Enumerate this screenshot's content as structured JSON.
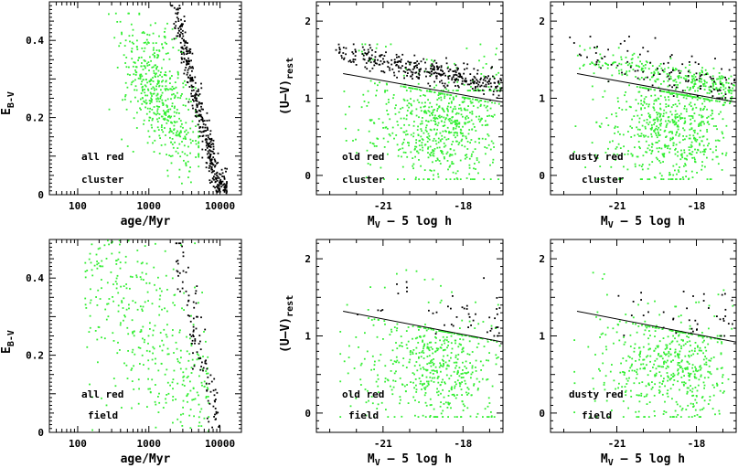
{
  "chart_data": [
    {
      "id": "age-cluster",
      "type": "scatter",
      "xscale": "log",
      "xlim": [
        40,
        20000
      ],
      "ylim": [
        0,
        0.5
      ],
      "xticks": [
        100,
        1000,
        10000
      ],
      "xticklabels": [
        "100",
        "1000",
        "10000"
      ],
      "yticks": [
        0,
        0.2,
        0.4
      ],
      "yticklabels": [
        "0",
        "0.2",
        "0.4"
      ],
      "xlabel": "age/Myr",
      "ylabel_main": "E",
      "ylabel_sub": "B-V",
      "annotation_lines": [
        "all red",
        "cluster"
      ],
      "colors": {
        "field_points": "#33ee33",
        "selected_points": "#000000"
      },
      "series": [
        {
          "role": "green",
          "n": 520,
          "x_log_range": [
            2.05,
            3.7
          ],
          "x_log_center": 3.15,
          "y_range": [
            0.02,
            0.46
          ],
          "trend": "broad"
        },
        {
          "role": "black",
          "n": 480,
          "x_log_range": [
            3.3,
            4.1
          ],
          "trend": "E(B-V) decreases steeply with age, from ~0.45 at 2500 Myr to ~0 at 10000 Myr"
        }
      ]
    },
    {
      "id": "cmd-old-cluster",
      "type": "scatter",
      "xlim": [
        -23.5,
        -16.5
      ],
      "ylim": [
        -0.25,
        2.25
      ],
      "xticks": [
        -21,
        -18
      ],
      "xticklabels": [
        "-21",
        "-18"
      ],
      "yticks": [
        0,
        1,
        2
      ],
      "yticklabels": [
        "0",
        "1",
        "2"
      ],
      "xlabel_main": "M",
      "xlabel_sub": "V",
      "xlabel_rest": " – 5 log h",
      "ylabel_main": "(U–V)",
      "ylabel_sub": "rest",
      "annotation_lines": [
        "old red",
        "cluster"
      ],
      "fit_line": {
        "x": [
          -22.5,
          -16.5
        ],
        "y": [
          1.32,
          0.95
        ]
      },
      "series": [
        {
          "role": "green",
          "n": 620,
          "y_range": [
            -0.05,
            1.3
          ],
          "trend": "blue cloud below the line"
        },
        {
          "role": "green",
          "n": 90,
          "y_range": [
            1.1,
            1.7
          ],
          "trend": "green points on the red sequence"
        },
        {
          "role": "black",
          "n": 360,
          "x_range": [
            -23.0,
            -16.5
          ],
          "y_range": [
            0.95,
            1.7
          ],
          "trend": "tight red sequence, U-V ~ 1.6 at -22.5 falling to ~1.1 at -16.5"
        }
      ]
    },
    {
      "id": "cmd-dusty-cluster",
      "type": "scatter",
      "xlim": [
        -23.5,
        -16.5
      ],
      "ylim": [
        -0.25,
        2.25
      ],
      "xticks": [
        -21,
        -18
      ],
      "xticklabels": [
        "-21",
        "-18"
      ],
      "yticks": [
        0,
        1,
        2
      ],
      "yticklabels": [
        "0",
        "1",
        "2"
      ],
      "xlabel_main": "M",
      "xlabel_sub": "V",
      "xlabel_rest": " – 5 log h",
      "annotation_lines": [
        "dusty red",
        "cluster"
      ],
      "fit_line": {
        "x": [
          -22.5,
          -16.5
        ],
        "y": [
          1.32,
          0.95
        ]
      },
      "series": [
        {
          "role": "green",
          "n": 620,
          "y_range": [
            -0.05,
            1.3
          ],
          "trend": "blue cloud below the line"
        },
        {
          "role": "green",
          "n": 280,
          "y_range": [
            0.95,
            1.7
          ],
          "trend": "red sequence mostly green"
        },
        {
          "role": "black",
          "n": 110,
          "y_range": [
            1.0,
            1.8
          ],
          "trend": "black points spread above the red sequence"
        }
      ]
    },
    {
      "id": "age-field",
      "type": "scatter",
      "xscale": "log",
      "xlim": [
        40,
        20000
      ],
      "ylim": [
        0,
        0.5
      ],
      "xticks": [
        100,
        1000,
        10000
      ],
      "xticklabels": [
        "100",
        "1000",
        "10000"
      ],
      "yticks": [
        0,
        0.2,
        0.4
      ],
      "yticklabels": [
        "0",
        "0.2",
        "0.4"
      ],
      "xlabel": "age/Myr",
      "ylabel_main": "E",
      "ylabel_sub": "B-V",
      "annotation_lines": [
        "all red",
        "field"
      ],
      "series": [
        {
          "role": "green",
          "n": 420,
          "x_log_range": [
            2.1,
            3.85
          ],
          "trend": "E(B-V) spread 0-0.5, decreasing toward older ages"
        },
        {
          "role": "black",
          "n": 110,
          "x_log_range": [
            3.35,
            4.0
          ],
          "trend": "sparse band decreasing with age"
        }
      ]
    },
    {
      "id": "cmd-old-field",
      "type": "scatter",
      "xlim": [
        -23.5,
        -16.5
      ],
      "ylim": [
        -0.25,
        2.25
      ],
      "xticks": [
        -21,
        -18
      ],
      "xticklabels": [
        "-21",
        "-18"
      ],
      "yticks": [
        0,
        1,
        2
      ],
      "yticklabels": [
        "0",
        "1",
        "2"
      ],
      "xlabel_main": "M",
      "xlabel_sub": "V",
      "xlabel_rest": " – 5 log h",
      "ylabel_main": "(U–V)",
      "ylabel_sub": "rest",
      "annotation_lines": [
        "old red",
        "field"
      ],
      "fit_line": {
        "x": [
          -22.5,
          -16.5
        ],
        "y": [
          1.32,
          0.92
        ]
      },
      "series": [
        {
          "role": "green",
          "n": 520,
          "y_range": [
            -0.05,
            1.3
          ],
          "trend": "blue cloud below the line"
        },
        {
          "role": "green",
          "n": 30,
          "y_range": [
            1.1,
            2.1
          ],
          "trend": "a few green points above the line"
        },
        {
          "role": "black",
          "n": 45,
          "x_range": [
            -22.0,
            -16.6
          ],
          "y_range": [
            1.0,
            1.85
          ],
          "trend": "sparse red sequence"
        }
      ]
    },
    {
      "id": "cmd-dusty-field",
      "type": "scatter",
      "xlim": [
        -23.5,
        -16.5
      ],
      "ylim": [
        -0.25,
        2.25
      ],
      "xticks": [
        -21,
        -18
      ],
      "xticklabels": [
        "-21",
        "-18"
      ],
      "yticks": [
        0,
        1,
        2
      ],
      "yticklabels": [
        "0",
        "1",
        "2"
      ],
      "xlabel_main": "M",
      "xlabel_sub": "V",
      "xlabel_rest": " – 5 log h",
      "annotation_lines": [
        "dusty red",
        "field"
      ],
      "fit_line": {
        "x": [
          -22.5,
          -16.5
        ],
        "y": [
          1.32,
          0.92
        ]
      },
      "series": [
        {
          "role": "green",
          "n": 520,
          "y_range": [
            -0.05,
            1.3
          ],
          "trend": "blue cloud below the line"
        },
        {
          "role": "green",
          "n": 40,
          "y_range": [
            1.0,
            2.1
          ],
          "trend": "green points above the line"
        },
        {
          "role": "black",
          "n": 40,
          "x_range": [
            -21.0,
            -16.6
          ],
          "y_range": [
            1.0,
            2.15
          ],
          "trend": "sparse black points above the line"
        }
      ]
    }
  ]
}
